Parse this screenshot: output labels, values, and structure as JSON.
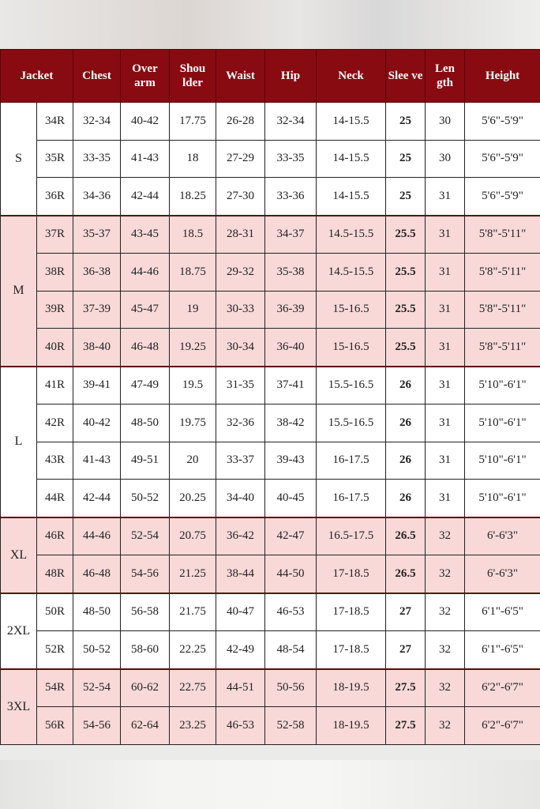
{
  "header": [
    "Jacket",
    "Chest",
    "Over arm",
    "Shou lder",
    "Waist",
    "Hip",
    "Neck",
    "Slee ve",
    "Len gth",
    "Height"
  ],
  "colors": {
    "header_bg": "#880b12",
    "pink_row": "#f8d9d8",
    "white_row": "#ffffff"
  },
  "groups": [
    {
      "size": "S",
      "shade": "white",
      "rows": [
        [
          "34R",
          "32-34",
          "40-42",
          "17.75",
          "26-28",
          "32-34",
          "14-15.5",
          "25",
          "30",
          "5'6\"-5'9\""
        ],
        [
          "35R",
          "33-35",
          "41-43",
          "18",
          "27-29",
          "33-35",
          "14-15.5",
          "25",
          "30",
          "5'6\"-5'9\""
        ],
        [
          "36R",
          "34-36",
          "42-44",
          "18.25",
          "27-30",
          "33-36",
          "14-15.5",
          "25",
          "31",
          "5'6\"-5'9\""
        ]
      ]
    },
    {
      "size": "M",
      "shade": "pink",
      "rows": [
        [
          "37R",
          "35-37",
          "43-45",
          "18.5",
          "28-31",
          "34-37",
          "14.5-15.5",
          "25.5",
          "31",
          "5'8\"-5'11\""
        ],
        [
          "38R",
          "36-38",
          "44-46",
          "18.75",
          "29-32",
          "35-38",
          "14.5-15.5",
          "25.5",
          "31",
          "5'8\"-5'11\""
        ],
        [
          "39R",
          "37-39",
          "45-47",
          "19",
          "30-33",
          "36-39",
          "15-16.5",
          "25.5",
          "31",
          "5'8\"-5'11\""
        ],
        [
          "40R",
          "38-40",
          "46-48",
          "19.25",
          "30-34",
          "36-40",
          "15-16.5",
          "25.5",
          "31",
          "5'8\"-5'11\""
        ]
      ]
    },
    {
      "size": "L",
      "shade": "white",
      "rows": [
        [
          "41R",
          "39-41",
          "47-49",
          "19.5",
          "31-35",
          "37-41",
          "15.5-16.5",
          "26",
          "31",
          "5'10\"-6'1\""
        ],
        [
          "42R",
          "40-42",
          "48-50",
          "19.75",
          "32-36",
          "38-42",
          "15.5-16.5",
          "26",
          "31",
          "5'10\"-6'1\""
        ],
        [
          "43R",
          "41-43",
          "49-51",
          "20",
          "33-37",
          "39-43",
          "16-17.5",
          "26",
          "31",
          "5'10\"-6'1\""
        ],
        [
          "44R",
          "42-44",
          "50-52",
          "20.25",
          "34-40",
          "40-45",
          "16-17.5",
          "26",
          "31",
          "5'10\"-6'1\""
        ]
      ]
    },
    {
      "size": "XL",
      "shade": "pink",
      "rows": [
        [
          "46R",
          "44-46",
          "52-54",
          "20.75",
          "36-42",
          "42-47",
          "16.5-17.5",
          "26.5",
          "32",
          "6'-6'3\""
        ],
        [
          "48R",
          "46-48",
          "54-56",
          "21.25",
          "38-44",
          "44-50",
          "17-18.5",
          "26.5",
          "32",
          "6'-6'3\""
        ]
      ]
    },
    {
      "size": "2XL",
      "shade": "white",
      "rows": [
        [
          "50R",
          "48-50",
          "56-58",
          "21.75",
          "40-47",
          "46-53",
          "17-18.5",
          "27",
          "32",
          "6'1\"-6'5\""
        ],
        [
          "52R",
          "50-52",
          "58-60",
          "22.25",
          "42-49",
          "48-54",
          "17-18.5",
          "27",
          "32",
          "6'1\"-6'5\""
        ]
      ]
    },
    {
      "size": "3XL",
      "shade": "pink",
      "rows": [
        [
          "54R",
          "52-54",
          "60-62",
          "22.75",
          "44-51",
          "50-56",
          "18-19.5",
          "27.5",
          "32",
          "6'2\"-6'7\""
        ],
        [
          "56R",
          "54-56",
          "62-64",
          "23.25",
          "46-53",
          "52-58",
          "18-19.5",
          "27.5",
          "32",
          "6'2\"-6'7\""
        ]
      ]
    }
  ]
}
